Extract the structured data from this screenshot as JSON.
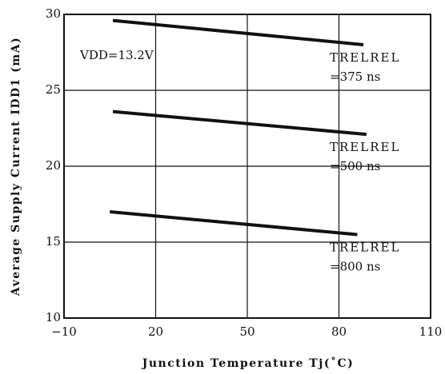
{
  "chart_data": {
    "type": "line",
    "xlabel": "Junction Temperature Tj(˚C)",
    "ylabel": "Average Supply Current IDD1 (mA)",
    "annotation": "VDD=13.2V",
    "series": [
      {
        "name": "TRELREL",
        "label": "=375 ns",
        "color": "#111111",
        "x": [
          6,
          88
        ],
        "values": [
          29.6,
          28.0
        ]
      },
      {
        "name": "TRELREL",
        "label": "=500 ns",
        "color": "#111111",
        "x": [
          6,
          89
        ],
        "values": [
          23.6,
          22.1
        ]
      },
      {
        "name": "TRELREL",
        "label": "=800 ns",
        "color": "#111111",
        "x": [
          5,
          86
        ],
        "values": [
          17.0,
          15.5
        ]
      }
    ],
    "xlim": [
      -10,
      110
    ],
    "xticks": [
      {
        "value": -10,
        "label": "−10"
      },
      20,
      50,
      80,
      110
    ],
    "ylim": [
      10,
      30
    ],
    "yticks": [
      10,
      15,
      20,
      25,
      30
    ],
    "grid": true
  }
}
